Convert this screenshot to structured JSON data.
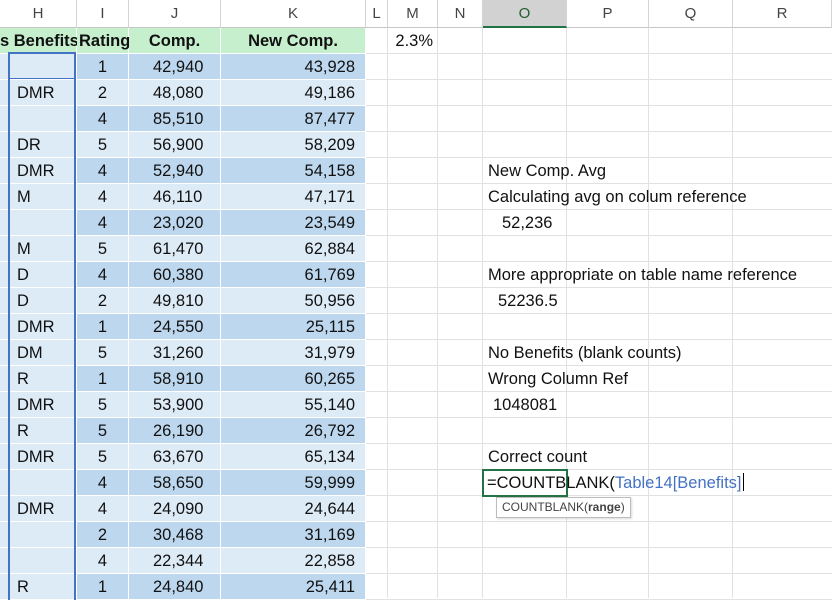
{
  "column_headers": [
    "H",
    "I",
    "J",
    "K",
    "L",
    "M",
    "N",
    "O",
    "P",
    "Q",
    "R"
  ],
  "table_headers": {
    "h": "s Benefits",
    "i": "Rating",
    "j": "Comp.",
    "k": "New Comp."
  },
  "m1": "2.3%",
  "rows": [
    {
      "benefits": "",
      "rating": "1",
      "comp": "42,940",
      "new": "43,928"
    },
    {
      "benefits": "DMR",
      "rating": "2",
      "comp": "48,080",
      "new": "49,186"
    },
    {
      "benefits": "",
      "rating": "4",
      "comp": "85,510",
      "new": "87,477"
    },
    {
      "benefits": "DR",
      "rating": "5",
      "comp": "56,900",
      "new": "58,209"
    },
    {
      "benefits": "DMR",
      "rating": "4",
      "comp": "52,940",
      "new": "54,158"
    },
    {
      "benefits": "M",
      "rating": "4",
      "comp": "46,110",
      "new": "47,171"
    },
    {
      "benefits": "",
      "rating": "4",
      "comp": "23,020",
      "new": "23,549"
    },
    {
      "benefits": "M",
      "rating": "5",
      "comp": "61,470",
      "new": "62,884"
    },
    {
      "benefits": "D",
      "rating": "4",
      "comp": "60,380",
      "new": "61,769"
    },
    {
      "benefits": "D",
      "rating": "2",
      "comp": "49,810",
      "new": "50,956"
    },
    {
      "benefits": "DMR",
      "rating": "1",
      "comp": "24,550",
      "new": "25,115"
    },
    {
      "benefits": "DM",
      "rating": "5",
      "comp": "31,260",
      "new": "31,979"
    },
    {
      "benefits": "R",
      "rating": "1",
      "comp": "58,910",
      "new": "60,265"
    },
    {
      "benefits": "DMR",
      "rating": "5",
      "comp": "53,900",
      "new": "55,140"
    },
    {
      "benefits": "R",
      "rating": "5",
      "comp": "26,190",
      "new": "26,792"
    },
    {
      "benefits": "DMR",
      "rating": "5",
      "comp": "63,670",
      "new": "65,134"
    },
    {
      "benefits": "",
      "rating": "4",
      "comp": "58,650",
      "new": "59,999"
    },
    {
      "benefits": "DMR",
      "rating": "4",
      "comp": "24,090",
      "new": "24,644"
    },
    {
      "benefits": "",
      "rating": "2",
      "comp": "30,468",
      "new": "31,169"
    },
    {
      "benefits": "",
      "rating": "4",
      "comp": "22,344",
      "new": "22,858"
    },
    {
      "benefits": "R",
      "rating": "1",
      "comp": "24,840",
      "new": "25,411"
    }
  ],
  "notes": {
    "avg_title": "New Comp. Avg",
    "avg_col_ref": "Calculating avg on colum reference",
    "avg_col_value": "52,236",
    "avg_table_ref": "More appropriate on table name reference",
    "avg_table_value": "52236.5",
    "no_benefits": "No Benefits (blank counts)",
    "wrong_ref": "Wrong Column Ref",
    "wrong_value": "1048081",
    "correct_count": "Correct count",
    "formula_prefix": "=COUNTBLANK(",
    "formula_ref": "Table14[Benefits]"
  },
  "tooltip": {
    "fn": "COUNTBLANK(",
    "arg": "range",
    "close": ")"
  },
  "colors": {
    "table_dark": "#bdd7ee",
    "table_light": "#ddebf7",
    "header_green": "#c6efce",
    "ref_blue": "#4472c4",
    "select_green": "#217346"
  }
}
